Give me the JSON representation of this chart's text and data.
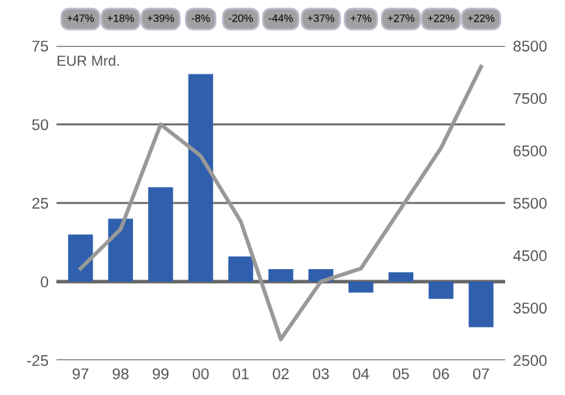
{
  "chart_data": {
    "type": "bar",
    "ylabel": "EUR Mrd.",
    "categories": [
      "97",
      "98",
      "99",
      "00",
      "01",
      "02",
      "03",
      "04",
      "05",
      "06",
      "07"
    ],
    "series": [
      {
        "color": "#3060ad",
        "values": [
          15,
          20,
          30,
          66,
          8,
          4,
          4,
          -3.5,
          3,
          -5.5,
          -14.5
        ]
      },
      {
        "type": "line",
        "axis": "y2",
        "color": "#999999",
        "values": [
          4250,
          5000,
          7000,
          6400,
          5150,
          2900,
          4000,
          4250,
          5400,
          6550,
          8100
        ]
      }
    ],
    "ylim": [
      -25,
      75
    ],
    "yticks": [
      -25,
      0,
      25,
      50,
      75
    ],
    "y2lim": [
      2500,
      8500
    ],
    "y2ticks": [
      2500,
      3500,
      4500,
      5500,
      6500,
      7500,
      8500
    ],
    "grid": "y",
    "marker": "none",
    "line_style": "solid",
    "annotations": [
      "+47%",
      "+18%",
      "+39%",
      "-8%",
      "-20%",
      "-44%",
      "+37%",
      "+7%",
      "+27%",
      "+22%",
      "+22%"
    ]
  }
}
